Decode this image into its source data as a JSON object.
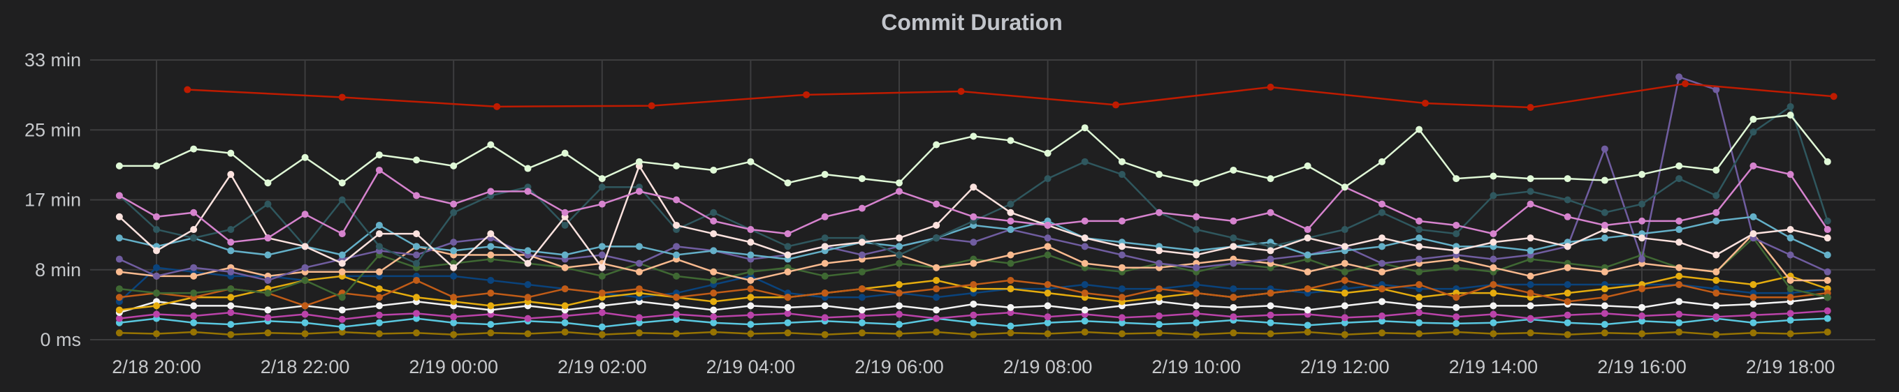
{
  "chart_data": {
    "type": "line",
    "title": "Commit Duration",
    "xlabel": "",
    "ylabel": "",
    "y_unit": "min",
    "ylim": [
      0,
      33
    ],
    "y_ticks": [
      {
        "value": 0,
        "label": "0 ms"
      },
      {
        "value": 8.25,
        "label": "8 min"
      },
      {
        "value": 16.5,
        "label": "17 min"
      },
      {
        "value": 24.75,
        "label": "25 min"
      },
      {
        "value": 33,
        "label": "33 min"
      }
    ],
    "x_ticks": [
      "2/18 20:00",
      "2/18 22:00",
      "2/19 00:00",
      "2/19 02:00",
      "2/19 04:00",
      "2/19 06:00",
      "2/19 08:00",
      "2/19 10:00",
      "2/19 12:00",
      "2/19 14:00",
      "2/19 16:00",
      "2/19 18:00"
    ],
    "xlim": [
      "2/18 19:10",
      "2/19 19:10"
    ],
    "grid": true,
    "legend": "none",
    "background": "#1f1f20",
    "x": [
      "2/18 19:30",
      "2/18 20:00",
      "2/18 20:30",
      "2/18 21:00",
      "2/18 21:30",
      "2/18 22:00",
      "2/18 22:30",
      "2/18 23:00",
      "2/18 23:30",
      "2/19 00:00",
      "2/19 00:30",
      "2/19 01:00",
      "2/19 01:30",
      "2/19 02:00",
      "2/19 02:30",
      "2/19 03:00",
      "2/19 03:30",
      "2/19 04:00",
      "2/19 04:30",
      "2/19 05:00",
      "2/19 05:30",
      "2/19 06:00",
      "2/19 06:30",
      "2/19 07:00",
      "2/19 07:30",
      "2/19 08:00",
      "2/19 08:30",
      "2/19 09:00",
      "2/19 09:30",
      "2/19 10:00",
      "2/19 10:30",
      "2/19 11:00",
      "2/19 11:30",
      "2/19 12:00",
      "2/19 12:30",
      "2/19 13:00",
      "2/19 13:30",
      "2/19 14:00",
      "2/19 14:30",
      "2/19 15:00",
      "2/19 15:30",
      "2/19 16:00",
      "2/19 16:30",
      "2/19 17:00",
      "2/19 17:30",
      "2/19 18:00",
      "2/19 18:30"
    ],
    "series": [
      {
        "color": "#e0f9d7",
        "values": [
          20.5,
          20.5,
          22.5,
          22,
          18.5,
          21.5,
          18.5,
          21.8,
          21.2,
          20.5,
          23,
          20.2,
          22,
          19,
          21,
          20.5,
          20,
          21,
          18.5,
          19.5,
          19,
          18.5,
          23,
          24,
          23.5,
          22,
          25,
          21,
          19.5,
          18.5,
          20,
          19,
          20.5,
          18,
          21,
          24.8,
          19,
          19.3,
          19,
          19,
          18.8,
          19.5,
          20.5,
          20,
          26,
          26.5,
          21
        ]
      },
      {
        "color": "#d683ce",
        "values": [
          17,
          14.5,
          15,
          11.5,
          12,
          14.8,
          12.5,
          20,
          17,
          16,
          17.5,
          17.5,
          15,
          16,
          17.5,
          16.5,
          14,
          13,
          12.5,
          14.5,
          15.5,
          17.5,
          16,
          14.5,
          14,
          13.5,
          14,
          14,
          15,
          14.5,
          14,
          15,
          13,
          18,
          16,
          14,
          13.5,
          12.5,
          16,
          14.5,
          13.5,
          14,
          14,
          15,
          20.5,
          19.5,
          13
        ]
      },
      {
        "color": "#fce2de",
        "values": [
          14.5,
          10.5,
          13,
          19.5,
          12,
          11,
          9,
          12.5,
          12.5,
          8.5,
          12.5,
          9,
          14.5,
          8.5,
          20.5,
          13.5,
          12.5,
          11.5,
          10,
          11,
          11.5,
          12,
          13.5,
          18,
          15,
          13.5,
          12,
          11,
          10.5,
          10,
          11,
          10.5,
          12,
          11,
          12,
          11,
          10.5,
          11.5,
          12,
          11,
          13,
          12,
          11.5,
          10,
          12.5,
          13,
          12
        ]
      },
      {
        "color": "#2f575e",
        "values": [
          17,
          13,
          12,
          13,
          16,
          11,
          16.5,
          11,
          9,
          15,
          17,
          18,
          13.5,
          18,
          18,
          13,
          15,
          13,
          11,
          12,
          12,
          10,
          12,
          14,
          16,
          19,
          21,
          19.5,
          15,
          13,
          12,
          11,
          12,
          13,
          15,
          13,
          12.5,
          17,
          17.5,
          16.5,
          15,
          16,
          19,
          17,
          24.5,
          27.5,
          14
        ]
      },
      {
        "color": "#64b0c8",
        "values": [
          12,
          11,
          12,
          10.5,
          10,
          11,
          10,
          13.5,
          11,
          10.5,
          11,
          10.5,
          10,
          11,
          11,
          10,
          10.5,
          10,
          9.5,
          10.5,
          11.5,
          11,
          12,
          13.5,
          13,
          14,
          12,
          11.5,
          11,
          10.5,
          11,
          11.5,
          10,
          10.5,
          11,
          12,
          11,
          11,
          10.5,
          11.5,
          12,
          12.5,
          13,
          14,
          14.5,
          12,
          10
        ]
      },
      {
        "color": "#705da0",
        "values": [
          9.5,
          7.5,
          8.5,
          8,
          7,
          8.5,
          9.5,
          10.5,
          10,
          11.5,
          12,
          10,
          9.5,
          10,
          9,
          11,
          10.5,
          9.5,
          10,
          11,
          10,
          11,
          12,
          11.5,
          13,
          12,
          11,
          10,
          9,
          8.5,
          9,
          9.5,
          10,
          11,
          9,
          9.5,
          10,
          9.5,
          10,
          11,
          22.5,
          9.5,
          31,
          29.5,
          12,
          10,
          8
        ]
      },
      {
        "color": "#f9ba8f",
        "values": [
          8,
          7.5,
          7.5,
          8.5,
          7.5,
          8,
          8,
          8,
          11,
          10,
          10,
          10,
          8.5,
          9,
          8,
          9.5,
          8,
          7,
          8,
          9,
          9.5,
          10,
          8.5,
          9,
          10,
          11,
          9,
          8.5,
          8.5,
          9,
          9.5,
          9,
          8,
          9,
          8,
          9,
          9.5,
          8.5,
          7.5,
          8.5,
          8,
          9,
          8.5,
          8,
          12.5,
          7,
          7
        ]
      },
      {
        "color": "#3f6833",
        "values": [
          6,
          5.5,
          5.5,
          6,
          5.5,
          7,
          5,
          10,
          8.5,
          9,
          9.5,
          9,
          8.5,
          7.5,
          9,
          7.5,
          7,
          8,
          8.5,
          7.5,
          8,
          9,
          8.5,
          9.5,
          9,
          10,
          8.5,
          8,
          9,
          8,
          9,
          8.5,
          9.5,
          8,
          9,
          8,
          8.5,
          8,
          9.5,
          9,
          8.5,
          10,
          8.5,
          8,
          12,
          6,
          5
        ]
      },
      {
        "color": "#c15c17",
        "values": [
          5,
          5.5,
          5,
          6,
          5.5,
          4,
          5.5,
          5,
          7,
          5,
          5.5,
          5,
          6,
          5.5,
          6,
          5,
          5.5,
          6,
          5,
          5.5,
          6,
          5.5,
          6,
          6.5,
          7,
          6.5,
          5.5,
          5,
          6,
          5.5,
          5,
          5.5,
          6,
          7,
          6,
          6.5,
          5,
          6.5,
          5.5,
          4.5,
          5,
          6,
          6.5,
          5.5,
          5,
          5,
          5.5
        ]
      },
      {
        "color": "#e5ac0e",
        "values": [
          3.5,
          4,
          5,
          5,
          6,
          7,
          7.5,
          6,
          5,
          4.5,
          4,
          4.5,
          4,
          5,
          5.5,
          5,
          4.5,
          5,
          5,
          5.5,
          6,
          6.5,
          7,
          6,
          6,
          5.5,
          5,
          4.5,
          5,
          5.5,
          5,
          5.5,
          6,
          5.5,
          6,
          5,
          5.5,
          5.5,
          5,
          5.5,
          6,
          6.5,
          7.5,
          7,
          6.5,
          7.5,
          6
        ]
      },
      {
        "color": "#0a437c",
        "values": [
          4.5,
          8.5,
          8,
          7.5,
          7.5,
          7,
          7.5,
          7.5,
          7.5,
          7.5,
          7,
          6.5,
          6,
          5.5,
          5,
          5.5,
          6.5,
          7.5,
          5.5,
          5,
          5,
          5.5,
          5,
          5.5,
          6,
          6,
          6.5,
          6,
          6,
          6.5,
          6,
          6,
          5.5,
          6,
          6.5,
          6,
          6,
          6.5,
          6.5,
          6.5,
          6.5,
          6.5,
          6.5,
          6,
          5.5,
          5.5,
          6
        ]
      },
      {
        "color": "#f4f4f4",
        "values": [
          3.2,
          4.5,
          4,
          4,
          3.5,
          4,
          3.5,
          4,
          4.5,
          4,
          3.5,
          4,
          3.5,
          4,
          4.5,
          4,
          3.5,
          4,
          3.8,
          4,
          3.5,
          4,
          3.5,
          4.2,
          3.8,
          4,
          3.5,
          4,
          4.5,
          4,
          3.8,
          4,
          3.5,
          4,
          4.5,
          4,
          3.8,
          4,
          4,
          4.2,
          4,
          3.8,
          4.5,
          4,
          4.2,
          4.5,
          5
        ]
      },
      {
        "color": "#ba43a9",
        "values": [
          2.5,
          3,
          2.8,
          3.2,
          2.6,
          3,
          2.4,
          2.9,
          3.1,
          2.7,
          3,
          2.5,
          2.8,
          3.2,
          2.6,
          3,
          2.7,
          2.9,
          3.1,
          2.6,
          2.8,
          3,
          2.5,
          2.9,
          3.2,
          2.7,
          3,
          2.6,
          2.8,
          3.1,
          2.7,
          2.9,
          3,
          2.6,
          2.8,
          3.2,
          2.7,
          3,
          2.5,
          2.9,
          3.1,
          2.8,
          3,
          2.7,
          2.9,
          3.1,
          3.4
        ]
      },
      {
        "color": "#5ac8e0",
        "values": [
          2,
          2.5,
          2,
          1.8,
          2.2,
          2,
          1.5,
          2,
          2.5,
          2,
          1.8,
          2.2,
          2,
          1.5,
          2,
          2.4,
          2,
          1.8,
          2,
          2.2,
          2,
          1.8,
          2.5,
          2,
          1.6,
          2,
          2.2,
          2,
          1.8,
          2,
          2.3,
          2,
          1.7,
          2,
          2.2,
          2,
          1.9,
          2,
          2.4,
          2,
          1.8,
          2.2,
          2,
          2.5,
          2,
          2.3,
          2.5
        ]
      },
      {
        "color": "#967302",
        "values": [
          0.8,
          0.7,
          0.9,
          0.6,
          0.8,
          0.7,
          0.9,
          0.7,
          0.8,
          0.6,
          0.8,
          0.7,
          0.9,
          0.6,
          0.8,
          0.7,
          0.9,
          0.7,
          0.8,
          0.6,
          0.8,
          0.7,
          0.9,
          0.6,
          0.8,
          0.7,
          0.9,
          0.7,
          0.8,
          0.6,
          0.8,
          0.7,
          0.9,
          0.6,
          0.8,
          0.7,
          0.9,
          0.7,
          0.8,
          0.6,
          0.8,
          0.7,
          0.9,
          0.6,
          0.8,
          0.7,
          0.9
        ]
      }
    ],
    "series_sparse": [
      {
        "color": "#bf1b00",
        "x": [
          "2/18 20:25",
          "2/18 22:30",
          "2/19 00:35",
          "2/19 02:40",
          "2/19 04:45",
          "2/19 06:50",
          "2/19 08:55",
          "2/19 11:00",
          "2/19 13:05",
          "2/19 14:30",
          "2/19 16:35",
          "2/19 18:35"
        ],
        "values": [
          29.5,
          28.6,
          27.5,
          27.6,
          28.9,
          29.3,
          27.7,
          29.8,
          27.9,
          27.4,
          30.2,
          28.7
        ]
      }
    ]
  }
}
